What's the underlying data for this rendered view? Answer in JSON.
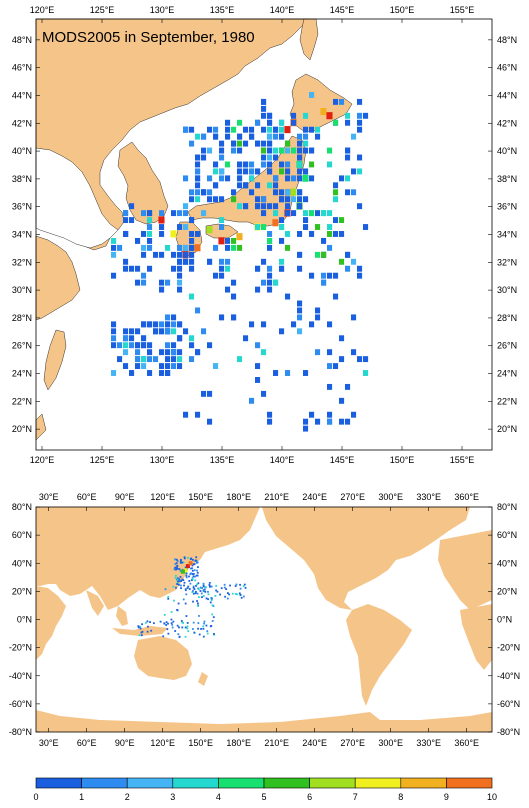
{
  "map_top": {
    "title": "MODS2005 in September, 1980",
    "lon_labels": [
      "120°E",
      "125°E",
      "130°E",
      "135°E",
      "140°E",
      "145°E",
      "150°E",
      "155°E"
    ],
    "lat_labels": [
      "48°N",
      "46°N",
      "44°N",
      "42°N",
      "40°N",
      "38°N",
      "36°N",
      "34°N",
      "32°N",
      "30°N",
      "28°N",
      "26°N",
      "24°N",
      "22°N",
      "20°N"
    ],
    "lon_range": [
      119.5,
      157.5
    ],
    "lat_range": [
      18.5,
      49.5
    ]
  },
  "map_bottom": {
    "lon_labels": [
      "30°E",
      "60°E",
      "90°E",
      "120°E",
      "150°E",
      "180°E",
      "210°E",
      "240°E",
      "270°E",
      "300°E",
      "330°E",
      "360°E"
    ],
    "lat_labels": [
      "80°N",
      "60°N",
      "40°N",
      "20°N",
      "0°N",
      "-20°N",
      "-40°N",
      "-60°N",
      "-80°N"
    ],
    "lon_range": [
      20,
      380
    ],
    "lat_range": [
      -80,
      80
    ]
  },
  "colorbar": {
    "labels": [
      "0",
      "1",
      "2",
      "3",
      "4",
      "5",
      "6",
      "7",
      "8",
      "9",
      "10"
    ],
    "colors": [
      "#1a5fe0",
      "#2e8cf0",
      "#44b4f4",
      "#24d8d0",
      "#18e070",
      "#30c020",
      "#a0e020",
      "#f0f020",
      "#f0b020",
      "#f07020",
      "#e02010"
    ]
  },
  "land_color": "#f5c489"
}
